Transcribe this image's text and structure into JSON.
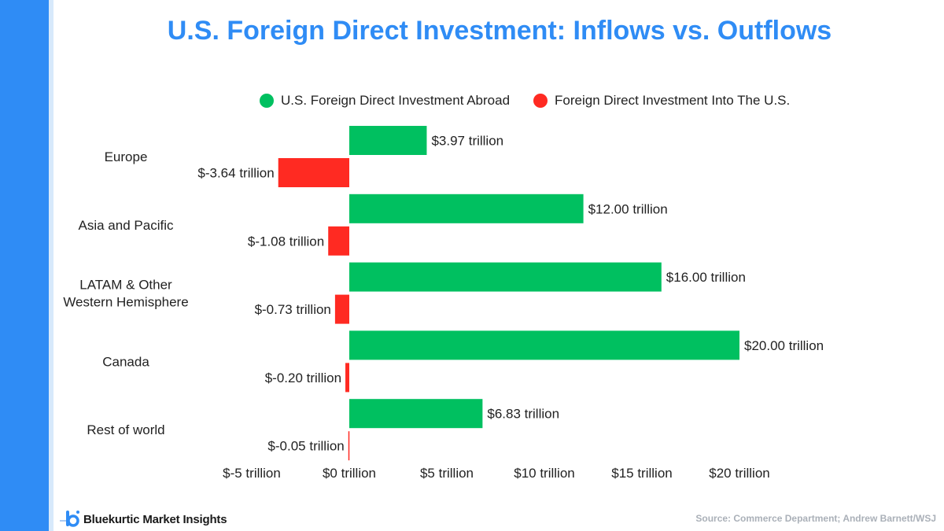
{
  "title": "U.S. Foreign Direct Investment: Inflows vs. Outflows",
  "legend": [
    {
      "label": "U.S. Foreign Direct Investment Abroad",
      "color": "#00c060"
    },
    {
      "label": "Foreign Direct Investment Into The U.S.",
      "color": "#ff2a22"
    }
  ],
  "branding": {
    "name": "Bluekurtic Market Insights",
    "icon": "bluekurtic-logo-icon"
  },
  "source": "Source: Commerce Department; Andrew Barnett/WSJ",
  "colors": {
    "accent": "#2f8cf5",
    "abroad": "#00c060",
    "into_us": "#ff2a22"
  },
  "chart_data": {
    "type": "bar",
    "orientation": "horizontal",
    "title": "U.S. Foreign Direct Investment: Inflows vs. Outflows",
    "categories": [
      [
        "Europe"
      ],
      [
        "Asia and Pacific"
      ],
      [
        "LATAM & Other",
        "Western Hemisphere"
      ],
      [
        "Canada"
      ],
      [
        "Rest of world"
      ]
    ],
    "series": [
      {
        "name": "U.S. Foreign Direct Investment Abroad",
        "color": "#00c060",
        "values": [
          3.97,
          12.0,
          16.0,
          20.0,
          6.83
        ],
        "labels": [
          "$3.97 trillion",
          "$12.00 trillion",
          "$16.00 trillion",
          "$20.00 trillion",
          "$6.83 trillion"
        ]
      },
      {
        "name": "Foreign Direct Investment Into The U.S.",
        "color": "#ff2a22",
        "values": [
          -3.64,
          -1.08,
          -0.73,
          -0.2,
          -0.05
        ],
        "labels": [
          "$-3.64 trillion",
          "$-1.08 trillion",
          "$-0.73 trillion",
          "$-0.20 trillion",
          "$-0.05 trillion"
        ]
      }
    ],
    "xlim": [
      -5,
      20
    ],
    "xticks": [
      -5,
      0,
      5,
      10,
      15,
      20
    ],
    "xtick_labels": [
      "$-5 trillion",
      "$0 trillion",
      "$5 trillion",
      "$10 trillion",
      "$15 trillion",
      "$20 trillion"
    ],
    "grid": false,
    "legend_position": "top"
  }
}
